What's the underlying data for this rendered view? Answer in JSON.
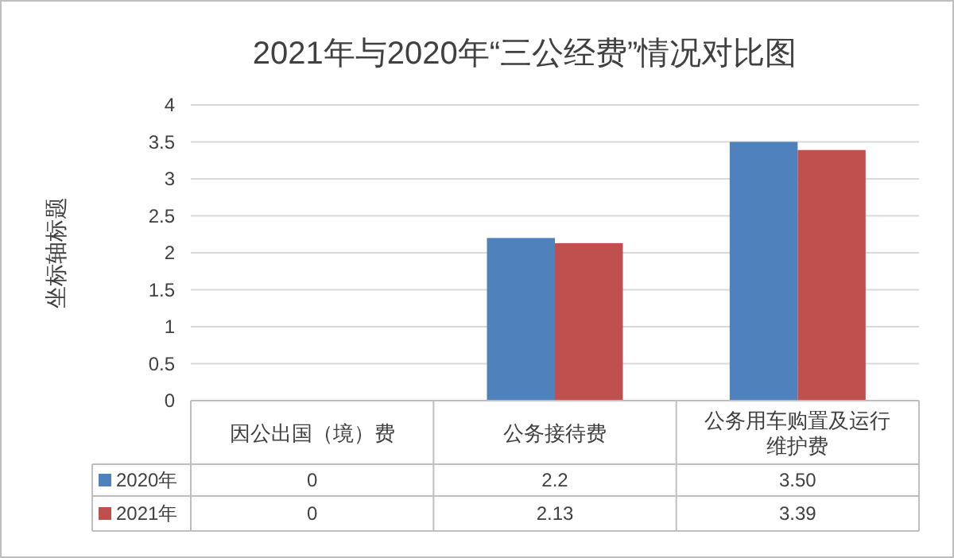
{
  "chart_data": {
    "type": "bar",
    "title": "2021年与2020年“三公经费”情况对比图",
    "ylabel": "坐标轴标题",
    "categories": [
      "因公出国（境）费",
      "公务接待费",
      "公务用车购置及运行维护费"
    ],
    "series": [
      {
        "name": "2020年",
        "color": "#4f81bd",
        "values": [
          0,
          2.2,
          3.5
        ],
        "value_labels": [
          "0",
          "2.2",
          "3.50"
        ]
      },
      {
        "name": "2021年",
        "color": "#c0504d",
        "values": [
          0,
          2.13,
          3.39
        ],
        "value_labels": [
          "0",
          "2.13",
          "3.39"
        ]
      }
    ],
    "ylim": [
      0,
      4
    ],
    "yticks": [
      0,
      0.5,
      1,
      1.5,
      2,
      2.5,
      3,
      3.5,
      4
    ],
    "grid": "y",
    "legend": "bottom left"
  }
}
